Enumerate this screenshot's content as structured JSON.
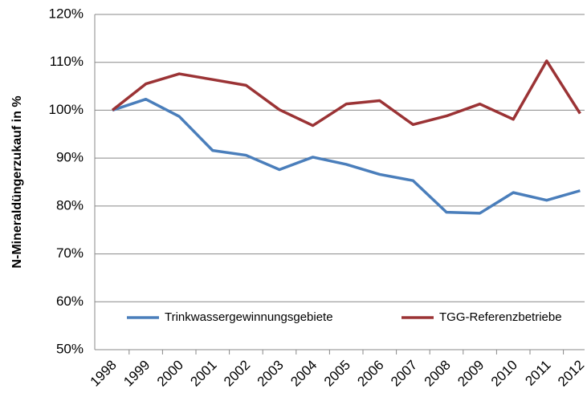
{
  "chart_data": {
    "type": "line",
    "y_label": "N-Mineraldüngerzukauf in %",
    "categories": [
      "1998",
      "1999",
      "2000",
      "2001",
      "2002",
      "2003",
      "2004",
      "2005",
      "2006",
      "2007",
      "2008",
      "2009",
      "2010",
      "2011",
      "2012"
    ],
    "series": [
      {
        "name": "Trinkwassergewinnungsgebiete",
        "color": "#4a7ebb",
        "values": [
          100,
          102.3,
          98.7,
          91.6,
          90.6,
          87.6,
          90.2,
          88.7,
          86.6,
          85.3,
          78.7,
          78.5,
          82.8,
          81.2,
          83.2
        ]
      },
      {
        "name": "TGG-Referenzbetriebe",
        "color": "#9b3335",
        "values": [
          100,
          105.5,
          107.6,
          106.4,
          105.2,
          100.1,
          96.8,
          101.3,
          102.0,
          97.0,
          98.8,
          101.3,
          98.1,
          110.3,
          99.3
        ]
      }
    ],
    "ylim": [
      50,
      120
    ],
    "yticks": [
      {
        "value": 50,
        "label": "50%"
      },
      {
        "value": 60,
        "label": "60%"
      },
      {
        "value": 70,
        "label": "70%"
      },
      {
        "value": 80,
        "label": "80%"
      },
      {
        "value": 90,
        "label": "90%"
      },
      {
        "value": 100,
        "label": "100%"
      },
      {
        "value": 110,
        "label": "110%"
      },
      {
        "value": 120,
        "label": "120%"
      }
    ],
    "grid": true
  }
}
